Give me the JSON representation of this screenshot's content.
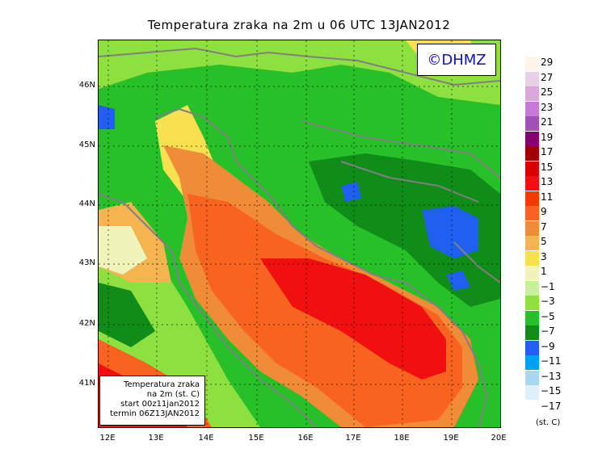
{
  "title": "Temperatura zraka na 2m u 06 UTC 13JAN2012",
  "logo": "©DHMZ",
  "info": {
    "line1": "Temperatura zraka",
    "line2": "na 2m (st. C)",
    "line3": "start 00z11jan2012",
    "line4": "termin 06Z13JAN2012"
  },
  "lat_ticks": [
    "46N",
    "45N",
    "44N",
    "43N",
    "42N",
    "41N"
  ],
  "lon_ticks": [
    "12E",
    "13E",
    "14E",
    "15E",
    "16E",
    "17E",
    "18E",
    "19E",
    "20E"
  ],
  "colorbar": {
    "unit": "(st. C)",
    "levels": [
      {
        "label": "29",
        "color": "#fff4e8"
      },
      {
        "label": "27",
        "color": "#e8d0e8"
      },
      {
        "label": "25",
        "color": "#dca8dc"
      },
      {
        "label": "23",
        "color": "#c878d8"
      },
      {
        "label": "21",
        "color": "#a050b8"
      },
      {
        "label": "19",
        "color": "#880070"
      },
      {
        "label": "17",
        "color": "#a00000"
      },
      {
        "label": "15",
        "color": "#d80000"
      },
      {
        "label": "13",
        "color": "#f01010"
      },
      {
        "label": "11",
        "color": "#f03c00"
      },
      {
        "label": "9",
        "color": "#f86420"
      },
      {
        "label": "7",
        "color": "#f08c38"
      },
      {
        "label": "5",
        "color": "#f4b450"
      },
      {
        "label": "3",
        "color": "#f8e050"
      },
      {
        "label": "1",
        "color": "#f0f4b8"
      },
      {
        "label": "−1",
        "color": "#c8f098"
      },
      {
        "label": "−3",
        "color": "#8ce040"
      },
      {
        "label": "−5",
        "color": "#28c028"
      },
      {
        "label": "−7",
        "color": "#108c18"
      },
      {
        "label": "−9",
        "color": "#2060f0"
      },
      {
        "label": "−11",
        "color": "#00a0f0"
      },
      {
        "label": "−13",
        "color": "#a8d8f0"
      },
      {
        "label": "−15",
        "color": "#e0f0f8"
      },
      {
        "label": "−17",
        "color": "#ffffff"
      }
    ]
  }
}
